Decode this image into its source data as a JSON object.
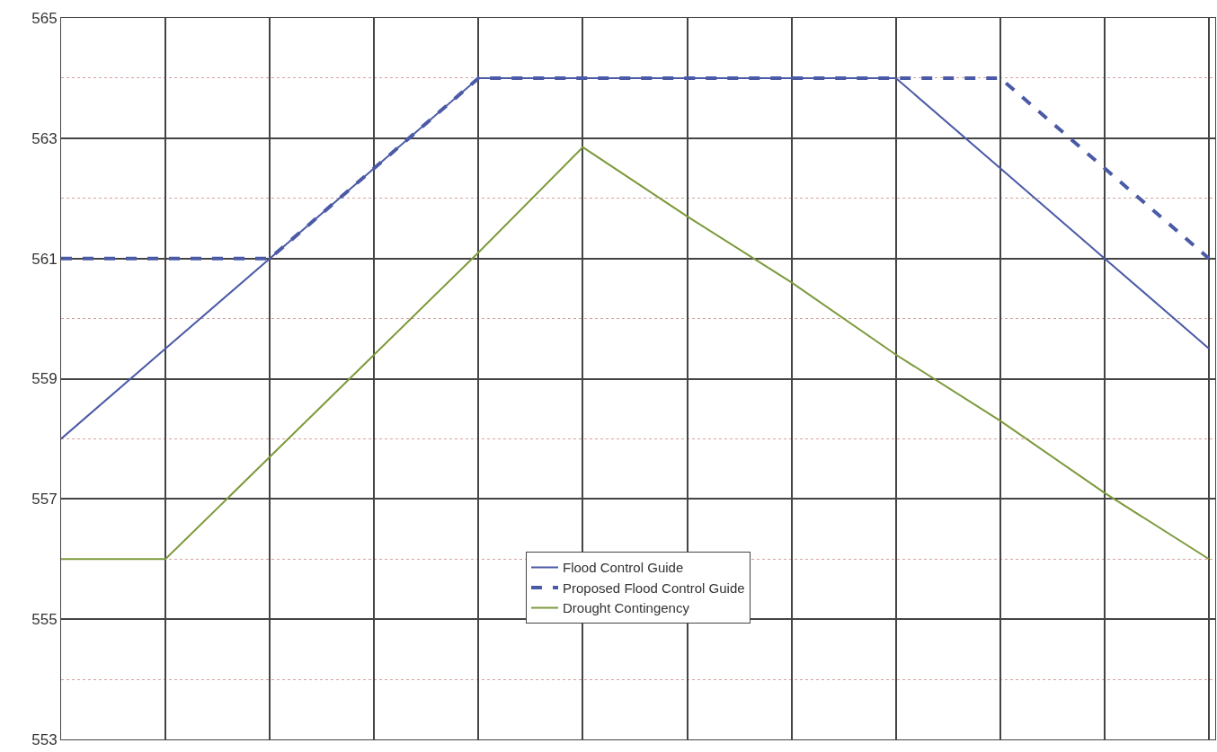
{
  "chart_data": {
    "type": "line",
    "categories": [
      null,
      null,
      null,
      null,
      null,
      null,
      null,
      null,
      null,
      null,
      null,
      null
    ],
    "series": [
      {
        "name": "Flood Control Guide",
        "color": "#4a5aa6",
        "line_style": "solid",
        "values": [
          558,
          559.5,
          561,
          562.5,
          564,
          564,
          564,
          564,
          564,
          562.5,
          561,
          559.5
        ]
      },
      {
        "name": "Proposed Flood Control Guide",
        "color": "#4a5aa6",
        "line_style": "dashed",
        "values": [
          561,
          561,
          561,
          562.5,
          564,
          564,
          564,
          564,
          564,
          564,
          562.5,
          561
        ]
      },
      {
        "name": "Drought Contingency",
        "color": "#7d9a3c",
        "line_style": "solid",
        "values": [
          556,
          556,
          557.7,
          559.4,
          561.1,
          562.85,
          561.7,
          560.6,
          559.4,
          558.3,
          557.1,
          556
        ]
      }
    ],
    "ylim": [
      553,
      565
    ],
    "yticks": [
      553,
      {
        "value": 554,
        "label": null
      },
      555,
      {
        "value": 556,
        "label": null
      },
      557,
      {
        "value": 558,
        "label": null
      },
      559,
      {
        "value": 560,
        "label": null
      },
      561,
      {
        "value": 562,
        "label": null
      },
      563,
      {
        "value": 564,
        "label": null
      },
      565
    ],
    "grid": true,
    "legend": "bottom",
    "tick_labels": "y",
    "marker": "none"
  }
}
